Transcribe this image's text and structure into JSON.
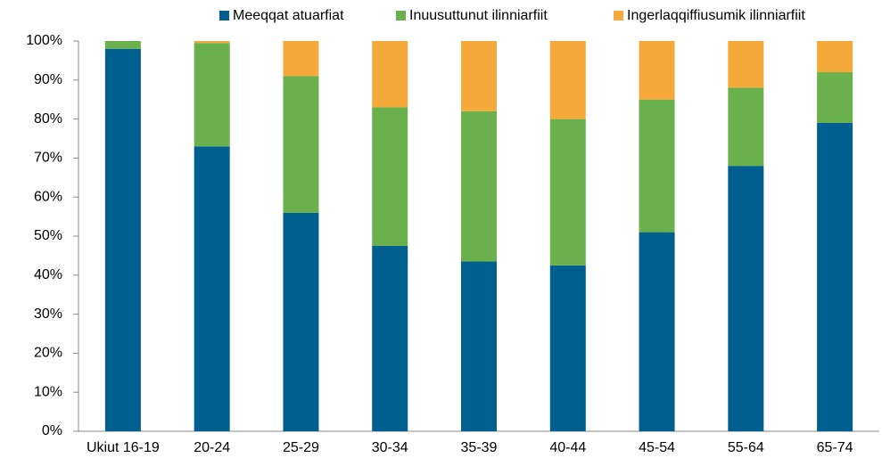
{
  "chart_data": {
    "type": "stacked_bar",
    "categories": [
      "Ukiut 16-19",
      "20-24",
      "25-29",
      "30-34",
      "35-39",
      "40-44",
      "45-54",
      "55-64",
      "65-74"
    ],
    "series": [
      {
        "name": "Meeqqat atuarfiat",
        "color": "#005f8f",
        "values": [
          98,
          73,
          56,
          47.5,
          43.5,
          42.5,
          51,
          68,
          79
        ]
      },
      {
        "name": "Inuusuttunut ilinniarfiit",
        "color": "#6ab04c",
        "values": [
          2,
          26.5,
          35,
          35.5,
          38.5,
          37.5,
          34,
          20,
          13
        ]
      },
      {
        "name": "Ingerlaqqiffiusumik ilinniarfiit",
        "color": "#f5a93b",
        "values": [
          0,
          0.5,
          9,
          17,
          18,
          20,
          15,
          12,
          8
        ]
      }
    ],
    "ylim": [
      0,
      100
    ],
    "yticks": [
      {
        "value": 0,
        "label": "0%"
      },
      {
        "value": 10,
        "label": "10%"
      },
      {
        "value": 20,
        "label": "20%"
      },
      {
        "value": 30,
        "label": "30%"
      },
      {
        "value": 40,
        "label": "40%"
      },
      {
        "value": 50,
        "label": "50%"
      },
      {
        "value": 60,
        "label": "60%"
      },
      {
        "value": 70,
        "label": "70%"
      },
      {
        "value": 80,
        "label": "80%"
      },
      {
        "value": 90,
        "label": "90%"
      },
      {
        "value": 100,
        "label": "100%"
      }
    ],
    "legend": "top"
  }
}
